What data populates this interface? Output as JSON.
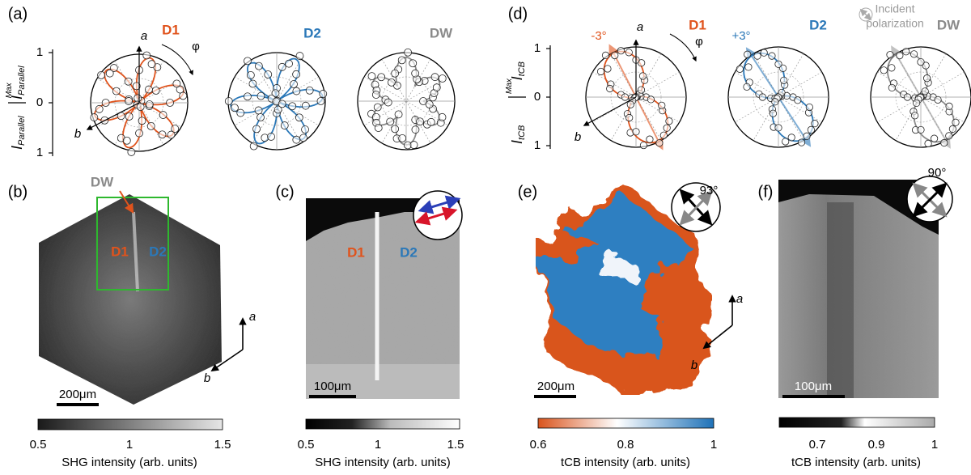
{
  "panel_labels": [
    "(a)",
    "(b)",
    "(c)",
    "(d)",
    "(e)",
    "(f)"
  ],
  "polar_a": {
    "y_label": {
      "main": "I",
      "sub": "Parallel",
      "sup": "Max"
    },
    "ticks": [
      1,
      0,
      1
    ],
    "axis_a": "a",
    "axis_b": "b",
    "angle": "φ",
    "plots": [
      {
        "name": "D1",
        "color": "#e0531c"
      },
      {
        "name": "D2",
        "color": "#2b78b8"
      },
      {
        "name": "DW",
        "color": "#8a8a8a"
      }
    ]
  },
  "polar_d": {
    "y_label": {
      "main": "I",
      "sub": "tCB",
      "sup": "Max"
    },
    "ticks": [
      1,
      0,
      1
    ],
    "axis_a": "a",
    "axis_b": "b",
    "angle": "φ",
    "plots": [
      {
        "name": "D1",
        "color": "#e0531c",
        "offset": "-3°"
      },
      {
        "name": "D2",
        "color": "#2b78b8",
        "offset": "+3°"
      },
      {
        "name": "DW",
        "color": "#8a8a8a"
      }
    ],
    "legend": [
      "Incident",
      "polarization"
    ]
  },
  "image_b": {
    "dw": "DW",
    "d1": "D1",
    "d2": "D2",
    "axis_a": "a",
    "axis_b": "b",
    "scale": "200μm",
    "colorbar": {
      "ticks": [
        0.5,
        1,
        1.5
      ],
      "label": "SHG intensity (arb. units)"
    }
  },
  "image_c": {
    "d1": "D1",
    "d2": "D2",
    "scale": "100μm",
    "colorbar": {
      "ticks": [
        0.5,
        1,
        1.5
      ],
      "label": "SHG intensity (arb. units)"
    }
  },
  "image_e": {
    "angle": "93°",
    "axis_a": "a",
    "axis_b": "b",
    "scale": "200μm",
    "colorbar": {
      "ticks": [
        0.6,
        0.8,
        1
      ],
      "label": "tCB intensity (arb. units)"
    }
  },
  "image_f": {
    "angle": "90°",
    "scale": "100μm",
    "colorbar": {
      "ticks": [
        0.7,
        0.9,
        1
      ],
      "label": "tCB intensity (arb. units)"
    }
  }
}
